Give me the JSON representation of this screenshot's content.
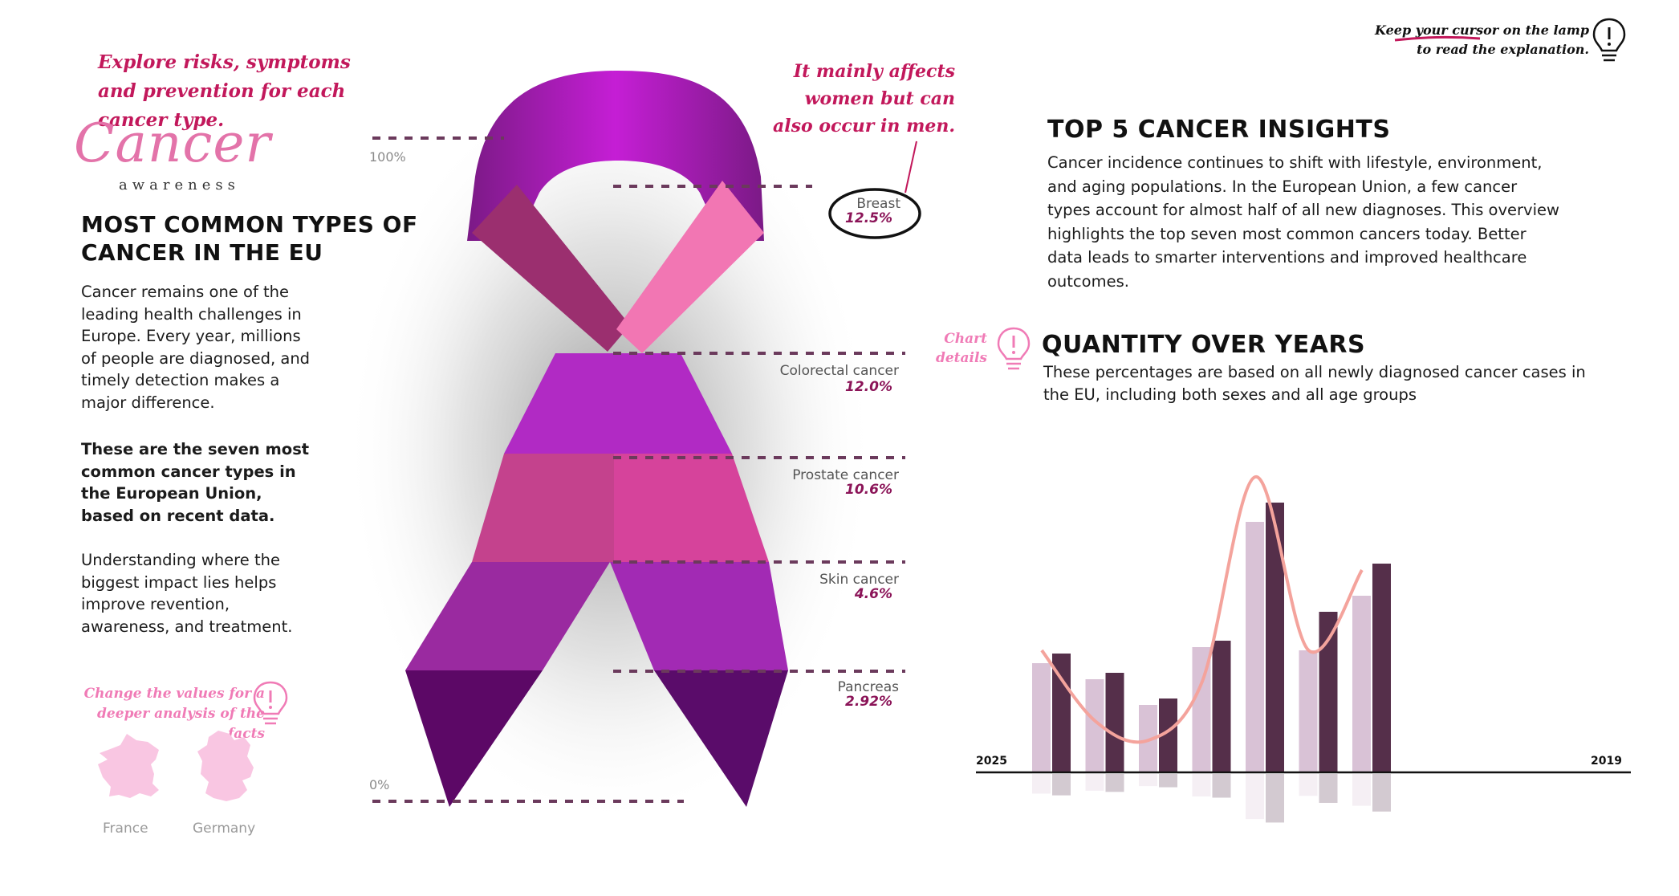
{
  "notes": {
    "explore": "Explore risks, symptoms and prevention for each cancer type.",
    "change_values": "Change the values for a deeper analysis of the facts",
    "mainly_affects": "It mainly affects women but can also occur in men.",
    "keep_cursor": "Keep your cursor on the lamp to read the explanation.",
    "chart_details": "Chart details"
  },
  "logo": {
    "word": "Cancer",
    "sub": "awareness"
  },
  "left": {
    "title": "MOST COMMON TYPES OF CANCER IN THE EU",
    "p1": "Cancer remains one of the leading health challenges in Europe. Every year, millions of people are diagnosed, and timely detection makes a major difference.",
    "p2": "These are the seven most common cancer types in the European Union, based on recent data.",
    "p3": "Understanding where the biggest impact lies helps improve revention, awareness, and treatment."
  },
  "maps": [
    {
      "label": "France",
      "color": "#f9c6e2"
    },
    {
      "label": "Germany",
      "color": "#f9c6e2"
    }
  ],
  "ribbon": {
    "scale_top": "100%",
    "scale_bottom": "0%",
    "categories": [
      {
        "name": "Breast",
        "value": "12.5%"
      },
      {
        "name": "Colorectal cancer",
        "value": "12.0%"
      },
      {
        "name": "Prostate cancer",
        "value": "10.6%"
      },
      {
        "name": "Skin cancer",
        "value": "4.6%"
      },
      {
        "name": "Pancreas",
        "value": "2.92%"
      }
    ]
  },
  "insights": {
    "title": "TOP 5 CANCER INSIGHTS",
    "body": "Cancer incidence continues to shift with lifestyle, environment, and aging populations. In the European Union, a few cancer types account for almost half of all new diagnoses. This overview highlights the top seven most common cancers today. Better data leads to smarter interventions and improved healthcare outcomes."
  },
  "quantity": {
    "title": "QUANTITY OVER YEARS",
    "subtitle": "These percentages are based on all newly diagnosed cancer cases in the EU, including both sexes and all age groups"
  },
  "chart_data": {
    "type": "bar",
    "x_start_label": "2025",
    "x_end_label": "2019",
    "ylim": [
      0,
      100
    ],
    "grid": false,
    "series": [
      {
        "values": [
          34,
          29,
          21,
          39,
          78,
          38,
          55
        ],
        "color": "#d9c2d6"
      },
      {
        "values": [
          37,
          31,
          23,
          41,
          84,
          50,
          65
        ],
        "color": "#552f4a"
      }
    ],
    "line": {
      "values": [
        38,
        16,
        10,
        28,
        92,
        38,
        63
      ],
      "color": "#f4a39c"
    }
  }
}
